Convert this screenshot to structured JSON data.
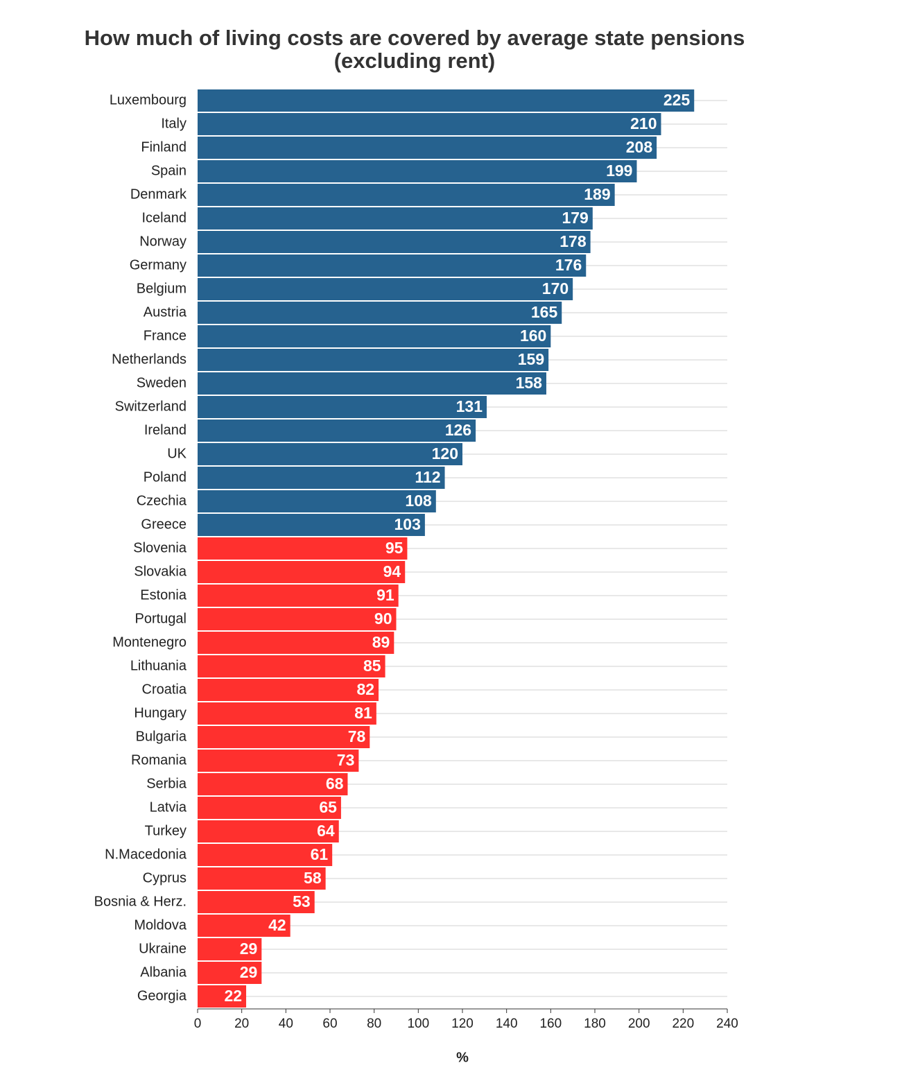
{
  "chart_data": {
    "type": "hbar",
    "title": "How much of living costs are covered by average state pensions (excluding rent)",
    "x_label": "%",
    "categories": [
      "Luxembourg",
      "Italy",
      "Finland",
      "Spain",
      "Denmark",
      "Iceland",
      "Norway",
      "Germany",
      "Belgium",
      "Austria",
      "France",
      "Netherlands",
      "Sweden",
      "Switzerland",
      "Ireland",
      "UK",
      "Poland",
      "Czechia",
      "Greece",
      "Slovenia",
      "Slovakia",
      "Estonia",
      "Portugal",
      "Montenegro",
      "Lithuania",
      "Croatia",
      "Hungary",
      "Bulgaria",
      "Romania",
      "Serbia",
      "Latvia",
      "Turkey",
      "N.Macedonia",
      "Cyprus",
      "Bosnia & Herz.",
      "Moldova",
      "Ukraine",
      "Albania",
      "Georgia"
    ],
    "values": [
      225,
      210,
      208,
      199,
      189,
      179,
      178,
      176,
      170,
      165,
      160,
      159,
      158,
      131,
      126,
      120,
      112,
      108,
      103,
      95,
      94,
      91,
      90,
      89,
      85,
      82,
      81,
      78,
      73,
      68,
      65,
      64,
      61,
      58,
      53,
      42,
      29,
      29,
      22
    ],
    "colors": [
      "#26628f",
      "#26628f",
      "#26628f",
      "#26628f",
      "#26628f",
      "#26628f",
      "#26628f",
      "#26628f",
      "#26628f",
      "#26628f",
      "#26628f",
      "#26628f",
      "#26628f",
      "#26628f",
      "#26628f",
      "#26628f",
      "#26628f",
      "#26628f",
      "#26628f",
      "#ff302e",
      "#ff302e",
      "#ff302e",
      "#ff302e",
      "#ff302e",
      "#ff302e",
      "#ff302e",
      "#ff302e",
      "#ff302e",
      "#ff302e",
      "#ff302e",
      "#ff302e",
      "#ff302e",
      "#ff302e",
      "#ff302e",
      "#ff302e",
      "#ff302e",
      "#ff302e",
      "#ff302e",
      "#ff302e"
    ],
    "xlim": [
      0,
      240
    ],
    "xticks": [
      0,
      20,
      40,
      60,
      80,
      100,
      120,
      140,
      160,
      180,
      200,
      220,
      240
    ]
  }
}
